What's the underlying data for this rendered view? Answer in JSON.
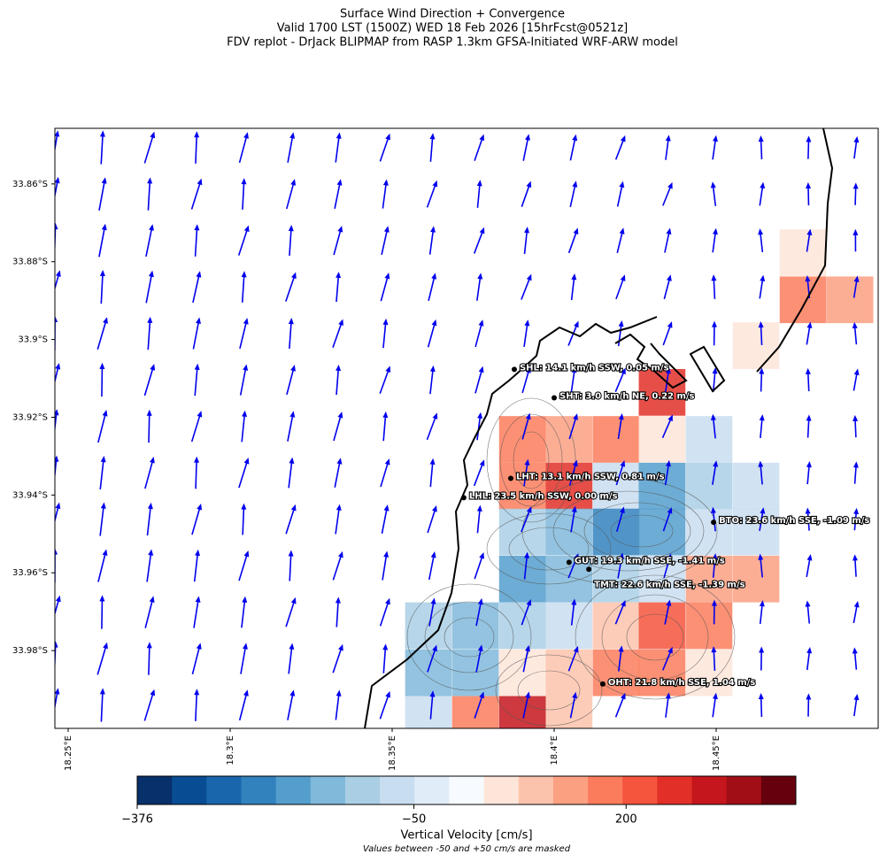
{
  "chart_data": {
    "type": "map",
    "title": [
      "Surface Wind Direction + Convergence",
      "Valid 1700 LST (1500Z) WED 18 Feb 2026 [15hrFcst@0521z]",
      "FDV replot - DrJack BLIPMAP from RASP 1.3km GFSA-Initiated WRF-ARW model"
    ],
    "xlim": [
      18.2459,
      18.5
    ],
    "ylim": [
      -33.8457,
      -34.0
    ],
    "xticks": [
      {
        "value": 18.25,
        "label": "18.25°E"
      },
      {
        "value": 18.3,
        "label": "18.3°E"
      },
      {
        "value": 18.35,
        "label": "18.35°E"
      },
      {
        "value": 18.4,
        "label": "18.4°E"
      },
      {
        "value": 18.45,
        "label": "18.45°E"
      }
    ],
    "yticks": [
      {
        "value": -33.86,
        "label": "33.86°S"
      },
      {
        "value": -33.88,
        "label": "33.88°S"
      },
      {
        "value": -33.9,
        "label": "33.9°S"
      },
      {
        "value": -33.92,
        "label": "33.92°S"
      },
      {
        "value": -33.94,
        "label": "33.94°S"
      },
      {
        "value": -33.96,
        "label": "33.96°S"
      },
      {
        "value": -33.98,
        "label": "33.98°S"
      }
    ],
    "cells": [
      {
        "lon": 18.4768,
        "lat": -33.8777,
        "value": 70
      },
      {
        "lon": 18.4768,
        "lat": -33.8898,
        "value": 180
      },
      {
        "lon": 18.4913,
        "lat": -33.8898,
        "value": 130
      },
      {
        "lon": 18.4623,
        "lat": -33.9016,
        "value": 70
      },
      {
        "lon": 18.4333,
        "lat": -33.9136,
        "value": 240
      },
      {
        "lon": 18.3902,
        "lat": -33.9257,
        "value": 170
      },
      {
        "lon": 18.4046,
        "lat": -33.9257,
        "value": 120
      },
      {
        "lon": 18.4191,
        "lat": -33.9257,
        "value": 190
      },
      {
        "lon": 18.4333,
        "lat": -33.9257,
        "value": 70
      },
      {
        "lon": 18.4478,
        "lat": -33.9257,
        "value": -70
      },
      {
        "lon": 18.3902,
        "lat": -33.9377,
        "value": 180
      },
      {
        "lon": 18.4046,
        "lat": -33.9377,
        "value": 260
      },
      {
        "lon": 18.4191,
        "lat": -33.9377,
        "value": -60
      },
      {
        "lon": 18.4333,
        "lat": -33.9377,
        "value": -190
      },
      {
        "lon": 18.4478,
        "lat": -33.9377,
        "value": -120
      },
      {
        "lon": 18.4623,
        "lat": -33.9377,
        "value": -70
      },
      {
        "lon": 18.3902,
        "lat": -33.9495,
        "value": -110
      },
      {
        "lon": 18.4046,
        "lat": -33.9495,
        "value": -160
      },
      {
        "lon": 18.4191,
        "lat": -33.9495,
        "value": -230
      },
      {
        "lon": 18.4333,
        "lat": -33.9495,
        "value": -210
      },
      {
        "lon": 18.4478,
        "lat": -33.9495,
        "value": -80
      },
      {
        "lon": 18.4623,
        "lat": -33.9495,
        "value": -60
      },
      {
        "lon": 18.3902,
        "lat": -33.9616,
        "value": -180
      },
      {
        "lon": 18.4046,
        "lat": -33.9616,
        "value": -140
      },
      {
        "lon": 18.4191,
        "lat": -33.9616,
        "value": -110
      },
      {
        "lon": 18.4333,
        "lat": -33.9616,
        "value": -80
      },
      {
        "lon": 18.4478,
        "lat": -33.9616,
        "value": 130
      },
      {
        "lon": 18.4623,
        "lat": -33.9616,
        "value": 130
      },
      {
        "lon": 18.3612,
        "lat": -33.9736,
        "value": -110
      },
      {
        "lon": 18.3757,
        "lat": -33.9736,
        "value": -170
      },
      {
        "lon": 18.3902,
        "lat": -33.9736,
        "value": -120
      },
      {
        "lon": 18.4046,
        "lat": -33.9736,
        "value": -70
      },
      {
        "lon": 18.4191,
        "lat": -33.9736,
        "value": 80
      },
      {
        "lon": 18.4333,
        "lat": -33.9736,
        "value": 200
      },
      {
        "lon": 18.4478,
        "lat": -33.9736,
        "value": 170
      },
      {
        "lon": 18.3612,
        "lat": -33.9857,
        "value": -170
      },
      {
        "lon": 18.3757,
        "lat": -33.9857,
        "value": -160
      },
      {
        "lon": 18.3902,
        "lat": -33.9857,
        "value": 70
      },
      {
        "lon": 18.4046,
        "lat": -33.9857,
        "value": 80
      },
      {
        "lon": 18.4191,
        "lat": -33.9857,
        "value": 180
      },
      {
        "lon": 18.4333,
        "lat": -33.9857,
        "value": 160
      },
      {
        "lon": 18.4478,
        "lat": -33.9857,
        "value": 60
      },
      {
        "lon": 18.3612,
        "lat": -33.9977,
        "value": -80
      },
      {
        "lon": 18.3757,
        "lat": -33.9977,
        "value": 170
      },
      {
        "lon": 18.3902,
        "lat": -33.9977,
        "value": 280
      },
      {
        "lon": 18.4046,
        "lat": -33.9977,
        "value": 110
      }
    ],
    "stations": [
      {
        "lon": 18.3877,
        "lat": -33.9077,
        "label": "SHL: 14.1 km/h SSW, 0.05 m/s"
      },
      {
        "lon": 18.4,
        "lat": -33.915,
        "label": "SHT: 3.0 km/h NE, 0.22 m/s"
      },
      {
        "lon": 18.3866,
        "lat": -33.9357,
        "label": "LHT: 13.1 km/h SSW, 0.81 m/s"
      },
      {
        "lon": 18.3721,
        "lat": -33.9407,
        "label": "LHL: 23.5 km/h SSW, 0.00 m/s"
      },
      {
        "lon": 18.4492,
        "lat": -33.947,
        "label": "BTO: 23.6 km/h SSE, -1.09 m/s"
      },
      {
        "lon": 18.4046,
        "lat": -33.9573,
        "label": "GUT: 19.3 km/h SSE, -1.41 m/s"
      },
      {
        "lon": 18.4107,
        "lat": -33.9591,
        "label": "TMT: 22.6 km/h SSE, -1.39 m/s"
      },
      {
        "lon": 18.415,
        "lat": -33.9886,
        "label": "OHT: 21.8 km/h SSE, 1.04 m/s"
      }
    ],
    "colorbar": {
      "label": "Vertical Velocity [cm/s]",
      "note": "Values between -50 and +50 cm/s are masked",
      "clim": [
        -376,
        400
      ],
      "ticks": [
        {
          "value": -376,
          "label": "−376"
        },
        {
          "value": -50,
          "label": "−50"
        },
        200
      ],
      "colors": [
        "#08306b",
        "#084c94",
        "#1966ad",
        "#3282be",
        "#549ecd",
        "#80b9da",
        "#aacfe5",
        "#c9ddf0",
        "#e0ecf8",
        "#f7fbff",
        "#fee5d9",
        "#fcc3ac",
        "#fca082",
        "#fb7c5c",
        "#f5553d",
        "#e23028",
        "#c4161c",
        "#a10e15",
        "#67000d"
      ]
    },
    "arrow_color": "#0000ee"
  }
}
